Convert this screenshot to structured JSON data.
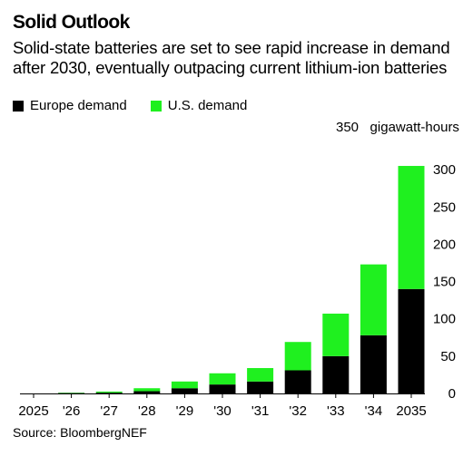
{
  "title": "Solid Outlook",
  "subtitle": "Solid-state batteries are set to see rapid increase in demand after 2030, eventually outpacing current lithium-ion batteries",
  "source": "Source: BloombergNEF",
  "unit_label": "gigawatt-hours",
  "chart_data": {
    "type": "bar",
    "stacked": true,
    "categories": [
      "2025",
      "'26",
      "'27",
      "'28",
      "'29",
      "'30",
      "'31",
      "'32",
      "'33",
      "'34",
      "2035"
    ],
    "series": [
      {
        "name": "Europe demand",
        "color": "#000000",
        "values": [
          0,
          0.5,
          1,
          3,
          7,
          12,
          16,
          31,
          50,
          78,
          140
        ]
      },
      {
        "name": "U.S. demand",
        "color": "#1ff01f",
        "values": [
          0,
          0.5,
          1.5,
          4,
          9,
          15,
          18,
          38,
          57,
          95,
          165
        ]
      }
    ],
    "yticks": [
      0,
      50,
      100,
      150,
      200,
      250,
      300,
      350
    ],
    "ylim": [
      0,
      350
    ],
    "legend_position": "top-left",
    "yaxis_position": "right",
    "grid": false
  }
}
